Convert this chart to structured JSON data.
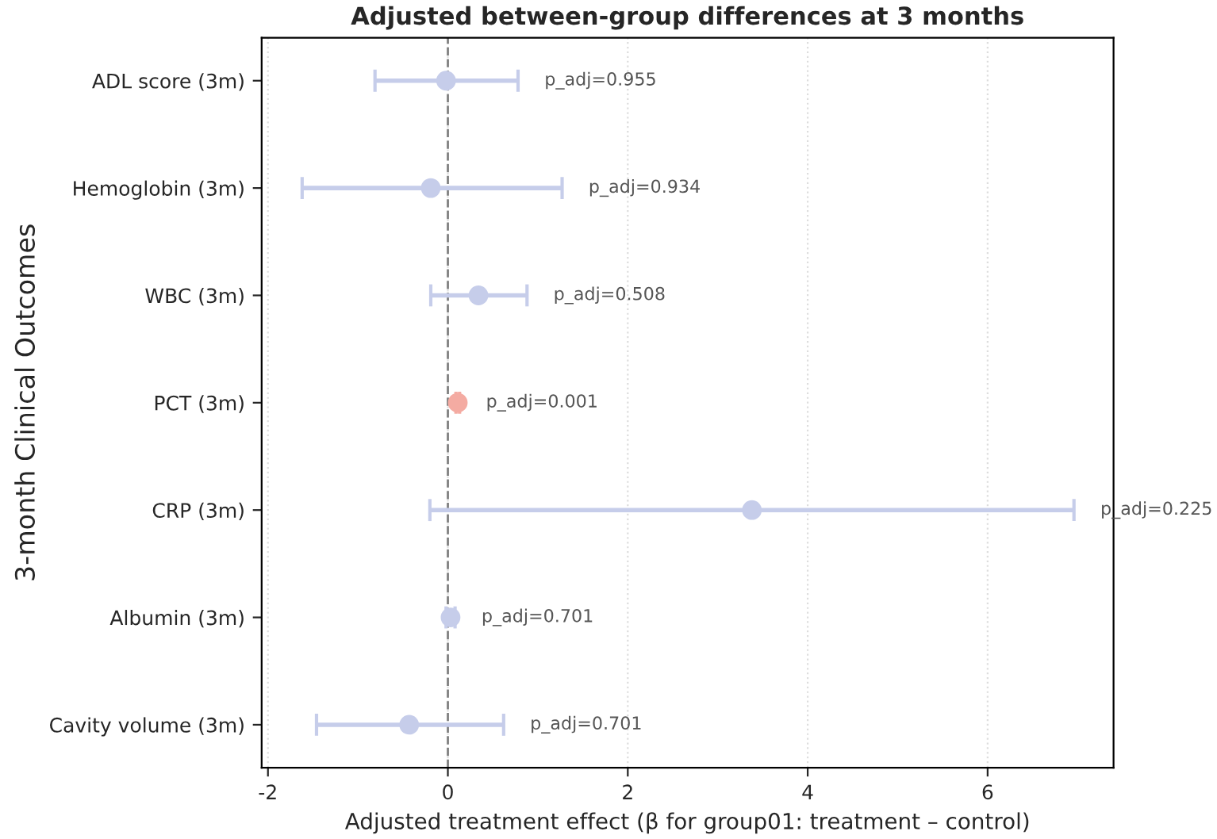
{
  "chart_data": {
    "type": "scatter",
    "orientation": "horizontal",
    "title": "Adjusted between-group differences at 3 months",
    "xlabel": "Adjusted treatment effect (β for group01: treatment – control)",
    "ylabel": "3-month Clinical Outcomes",
    "categories": [
      "ADL score (3m)",
      "Hemoglobin (3m)",
      "WBC (3m)",
      "PCT (3m)",
      "CRP (3m)",
      "Albumin (3m)",
      "Cavity volume (3m)"
    ],
    "values": [
      -0.02,
      -0.19,
      0.34,
      0.11,
      3.38,
      0.03,
      -0.43
    ],
    "errors": [
      [
        -0.81,
        0.78
      ],
      [
        -1.62,
        1.27
      ],
      [
        -0.19,
        0.88
      ],
      [
        0.09,
        0.13
      ],
      [
        -0.2,
        6.96
      ],
      [
        -0.02,
        0.08
      ],
      [
        -1.46,
        0.62
      ]
    ],
    "colors": [
      "#c6cdea",
      "#c6cdea",
      "#c6cdea",
      "#f4aba2",
      "#c6cdea",
      "#c6cdea",
      "#c6cdea"
    ],
    "annotations": [
      "p_adj=0.955",
      "p_adj=0.934",
      "p_adj=0.508",
      "p_adj=0.001",
      "p_adj=0.225",
      "p_adj=0.701",
      "p_adj=0.701"
    ],
    "ref_lines": [
      {
        "axis": "x",
        "value": 0,
        "color": "#808080",
        "line_style": "dashed"
      }
    ],
    "xlim": [
      -2.07,
      7.4
    ],
    "xticks": [
      -2,
      0,
      2,
      4,
      6
    ],
    "grid": "x",
    "marker": "circle",
    "legend": false
  }
}
